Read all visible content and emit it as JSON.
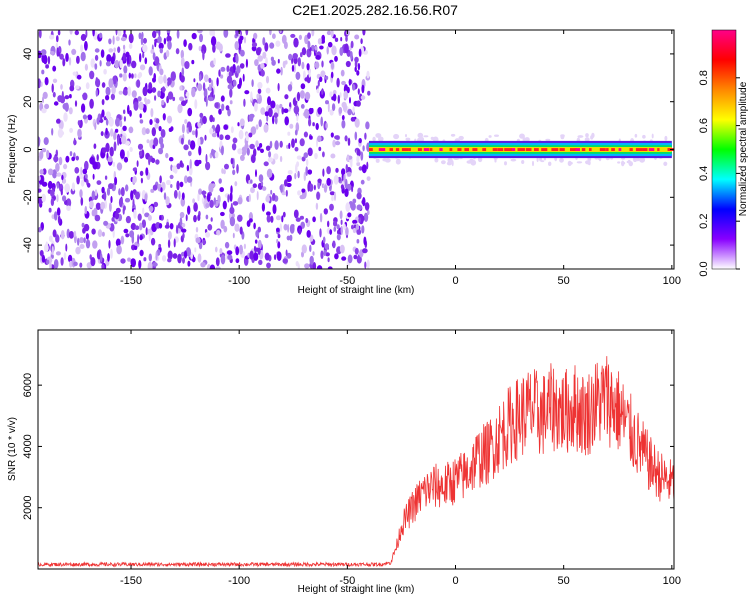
{
  "title": "C2E1.2025.282.16.56.R07",
  "chart_data": [
    {
      "type": "heatmap",
      "title": "C2E1.2025.282.16.56.R07",
      "xlabel": "Height of straight line (km)",
      "ylabel": "Frequency (Hz)",
      "xlim": [
        -193,
        101
      ],
      "ylim": [
        -50,
        50
      ],
      "xticks": [
        -150,
        -100,
        -50,
        0,
        50,
        100
      ],
      "yticks": [
        -40,
        -20,
        0,
        20,
        40
      ],
      "noise_region_x": [
        -193,
        -40
      ],
      "signal_band": {
        "x_range": [
          -40,
          100
        ],
        "frequency_center": 0,
        "frequency_half_width": 3
      },
      "colorbar": {
        "label": "Normalized spectral amplitude",
        "range": [
          0,
          1
        ],
        "ticks": [
          "0.0",
          "0.2",
          "0.4",
          "0.6",
          "0.8"
        ],
        "colors": [
          "#ffffff",
          "#8800ff",
          "#0000ff",
          "#00ffff",
          "#00ff00",
          "#ffff00",
          "#ff8800",
          "#ff0000",
          "#ff0088"
        ]
      }
    },
    {
      "type": "line",
      "xlabel": "Height of straight line (km)",
      "ylabel": "SNR (10 * v/v)",
      "xlim": [
        -193,
        101
      ],
      "ylim": [
        0,
        7800
      ],
      "xticks": [
        -150,
        -100,
        -50,
        0,
        50,
        100
      ],
      "yticks": [
        2000,
        4000,
        6000
      ],
      "color": "#ee3333",
      "series": [
        {
          "x": [
            -193,
            -150,
            -100,
            -60,
            -35,
            -30,
            -27,
            -25,
            -20,
            -15,
            -10,
            -5,
            0,
            5,
            10,
            15,
            20,
            25,
            30,
            35,
            40,
            45,
            50,
            55,
            60,
            65,
            70,
            75,
            80,
            85,
            90,
            95,
            100
          ],
          "values": [
            150,
            150,
            150,
            150,
            150,
            200,
            800,
            1400,
            2000,
            2500,
            2700,
            2700,
            2900,
            3100,
            3600,
            3800,
            4300,
            4700,
            5000,
            5200,
            5000,
            5300,
            5100,
            5300,
            5000,
            5400,
            5600,
            5200,
            4600,
            4000,
            3400,
            3000,
            2800
          ]
        }
      ]
    }
  ]
}
